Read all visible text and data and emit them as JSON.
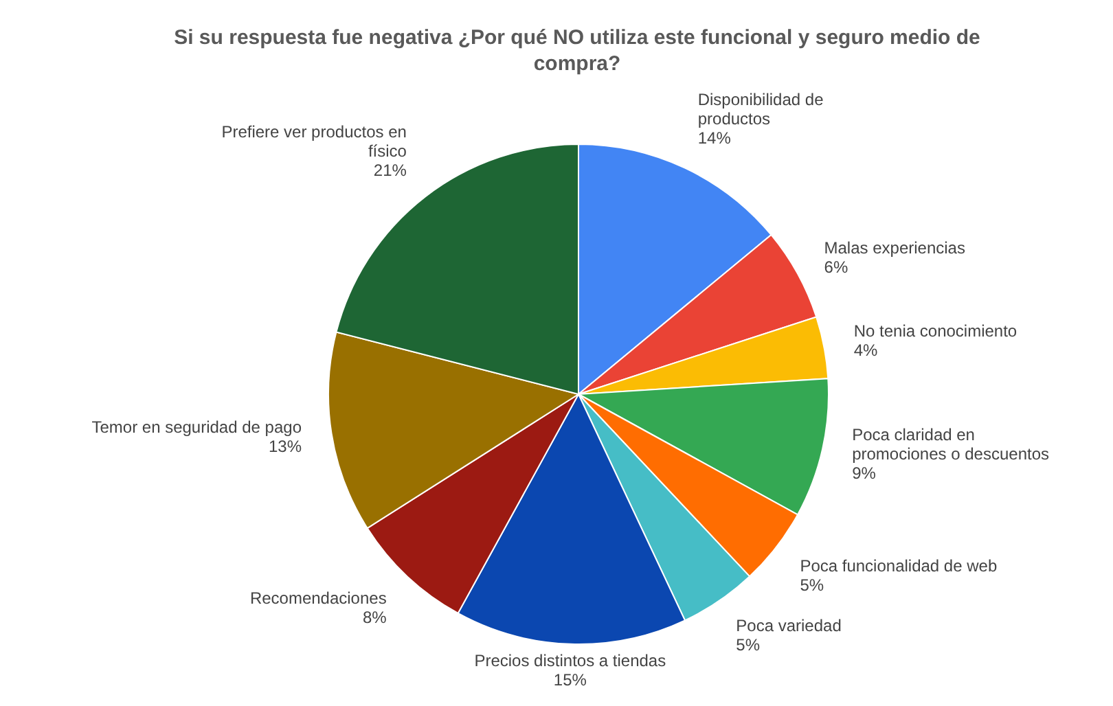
{
  "chart_data": {
    "type": "pie",
    "title": "Si su respuesta fue negativa ¿Por qué NO utiliza este funcional y seguro medio de compra?",
    "categories": [
      "Disponibilidad de productos",
      "Malas experiencias",
      "No tenia conocimiento",
      "Poca claridad en promociones o descuentos",
      "Poca funcionalidad de web",
      "Poca variedad",
      "Precios distintos a tiendas",
      "Recomendaciones",
      "Temor en seguridad de pago",
      "Prefiere ver productos en físico"
    ],
    "values": [
      14,
      6,
      4,
      9,
      5,
      5,
      15,
      8,
      13,
      21
    ],
    "value_labels": [
      "14%",
      "6%",
      "4%",
      "9%",
      "5%",
      "5%",
      "15%",
      "8%",
      "13%",
      "21%"
    ],
    "colors": [
      "#4285f4",
      "#ea4335",
      "#fbbc04",
      "#34a853",
      "#ff6d01",
      "#46bdc6",
      "#0b47b0",
      "#9c1a12",
      "#997000",
      "#1e6634"
    ],
    "legend": false
  }
}
